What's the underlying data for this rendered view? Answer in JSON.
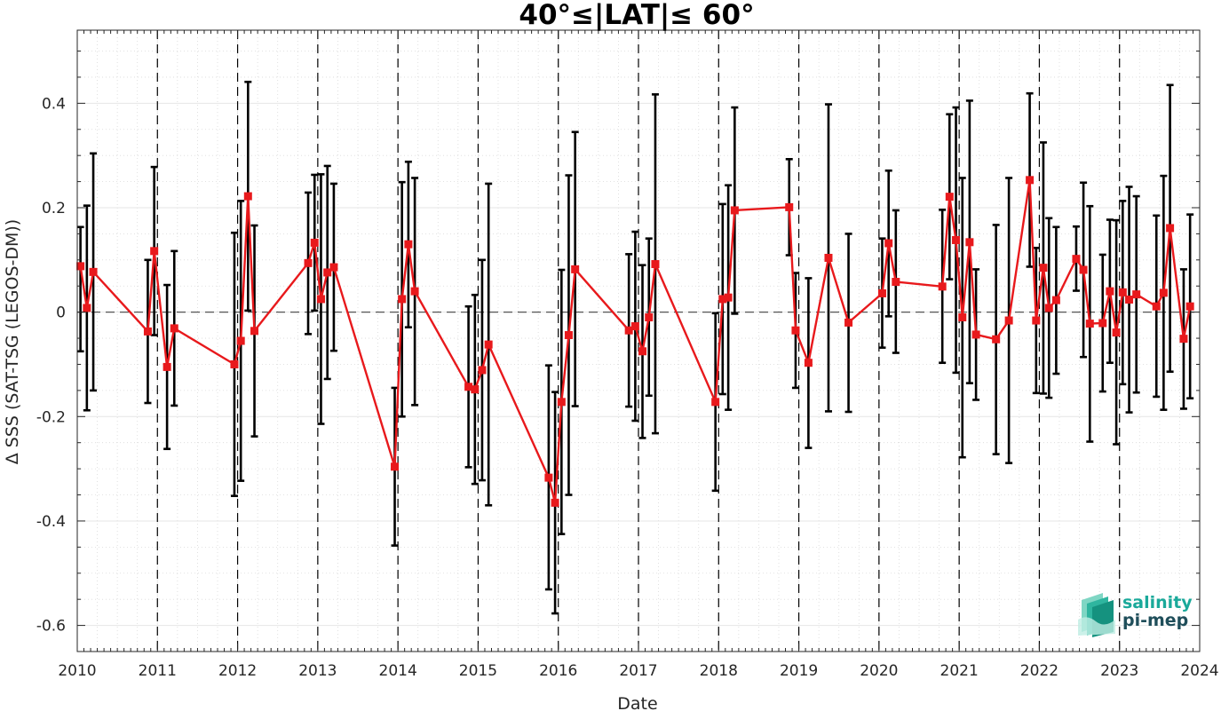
{
  "chart_data": {
    "type": "line",
    "title": "40°≤|LAT|≤ 60°",
    "xlabel": "Date",
    "ylabel": "Δ SSS (SAT-TSG (LEGOS-DM))",
    "xlim": [
      2010,
      2024
    ],
    "ylim": [
      -0.65,
      0.54
    ],
    "x_ticks": [
      "2010",
      "2011",
      "2012",
      "2013",
      "2014",
      "2015",
      "2016",
      "2017",
      "2018",
      "2019",
      "2020",
      "2021",
      "2022",
      "2023",
      "2024"
    ],
    "y_ticks": [
      "-0.6",
      "-0.4",
      "-0.2",
      "0",
      "0.2",
      "0.4"
    ],
    "y_tick_values": [
      -0.6,
      -0.4,
      -0.2,
      0,
      0.2,
      0.4
    ],
    "grid": true,
    "zero_line": 0,
    "year_dividers": [
      2011,
      2012,
      2013,
      2014,
      2015,
      2016,
      2017,
      2018,
      2019,
      2020,
      2021,
      2022,
      2023
    ],
    "series": [
      {
        "color": "#e8191c",
        "errorbar_color": "#000000",
        "marker": "square",
        "points": [
          [
            2010.04,
            0.088,
            -0.075,
            0.163
          ],
          [
            2010.12,
            0.008,
            -0.188,
            0.204
          ],
          [
            2010.2,
            0.077,
            -0.15,
            0.304
          ],
          [
            2010.88,
            -0.037,
            -0.174,
            0.1
          ],
          [
            2010.96,
            0.117,
            -0.044,
            0.278
          ],
          [
            2011.12,
            -0.105,
            -0.262,
            0.052
          ],
          [
            2011.21,
            -0.031,
            -0.179,
            0.117
          ],
          [
            2011.96,
            -0.1,
            -0.352,
            0.152
          ],
          [
            2012.04,
            -0.055,
            -0.323,
            0.213
          ],
          [
            2012.13,
            0.222,
            0.003,
            0.441
          ],
          [
            2012.21,
            -0.036,
            -0.238,
            0.166
          ],
          [
            2012.88,
            0.094,
            -0.042,
            0.229
          ],
          [
            2012.96,
            0.133,
            0.003,
            0.263
          ],
          [
            2013.04,
            0.025,
            -0.214,
            0.264
          ],
          [
            2013.12,
            0.076,
            -0.128,
            0.28
          ],
          [
            2013.2,
            0.086,
            -0.074,
            0.246
          ],
          [
            2013.96,
            -0.296,
            -0.447,
            -0.145
          ],
          [
            2014.05,
            0.025,
            -0.2,
            0.249
          ],
          [
            2014.13,
            0.13,
            -0.029,
            0.288
          ],
          [
            2014.21,
            0.04,
            -0.178,
            0.257
          ],
          [
            2014.88,
            -0.143,
            -0.297,
            0.011
          ],
          [
            2014.96,
            -0.148,
            -0.329,
            0.033
          ],
          [
            2015.05,
            -0.111,
            -0.322,
            0.1
          ],
          [
            2015.13,
            -0.062,
            -0.37,
            0.246
          ],
          [
            2015.88,
            -0.317,
            -0.531,
            -0.102
          ],
          [
            2015.96,
            -0.365,
            -0.577,
            -0.153
          ],
          [
            2016.04,
            -0.172,
            -0.425,
            0.081
          ],
          [
            2016.13,
            -0.044,
            -0.35,
            0.262
          ],
          [
            2016.21,
            0.082,
            -0.18,
            0.345
          ],
          [
            2016.88,
            -0.035,
            -0.181,
            0.111
          ],
          [
            2016.96,
            -0.027,
            -0.208,
            0.154
          ],
          [
            2017.05,
            -0.075,
            -0.241,
            0.09
          ],
          [
            2017.13,
            -0.01,
            -0.16,
            0.141
          ],
          [
            2017.21,
            0.092,
            -0.232,
            0.417
          ],
          [
            2017.96,
            -0.172,
            -0.342,
            -0.002
          ],
          [
            2018.05,
            0.025,
            -0.157,
            0.207
          ],
          [
            2018.12,
            0.028,
            -0.187,
            0.243
          ],
          [
            2018.2,
            0.195,
            -0.003,
            0.392
          ],
          [
            2018.88,
            0.201,
            0.109,
            0.293
          ],
          [
            2018.96,
            -0.035,
            -0.145,
            0.075
          ],
          [
            2019.12,
            -0.097,
            -0.26,
            0.065
          ],
          [
            2019.37,
            0.104,
            -0.19,
            0.398
          ],
          [
            2019.62,
            -0.02,
            -0.191,
            0.15
          ],
          [
            2020.04,
            0.036,
            -0.068,
            0.141
          ],
          [
            2020.12,
            0.132,
            -0.008,
            0.271
          ],
          [
            2020.21,
            0.058,
            -0.078,
            0.195
          ],
          [
            2020.79,
            0.049,
            -0.097,
            0.196
          ],
          [
            2020.88,
            0.221,
            0.063,
            0.379
          ],
          [
            2020.96,
            0.138,
            -0.116,
            0.392
          ],
          [
            2021.04,
            -0.01,
            -0.278,
            0.257
          ],
          [
            2021.13,
            0.134,
            -0.136,
            0.405
          ],
          [
            2021.21,
            -0.043,
            -0.168,
            0.082
          ],
          [
            2021.46,
            -0.052,
            -0.272,
            0.167
          ],
          [
            2021.62,
            -0.016,
            -0.289,
            0.257
          ],
          [
            2021.88,
            0.253,
            0.087,
            0.419
          ],
          [
            2021.96,
            -0.016,
            -0.155,
            0.123
          ],
          [
            2022.05,
            0.085,
            -0.156,
            0.325
          ],
          [
            2022.12,
            0.008,
            -0.164,
            0.18
          ],
          [
            2022.21,
            0.023,
            -0.118,
            0.163
          ],
          [
            2022.46,
            0.102,
            0.041,
            0.164
          ],
          [
            2022.55,
            0.081,
            -0.086,
            0.248
          ],
          [
            2022.63,
            -0.022,
            -0.248,
            0.203
          ],
          [
            2022.79,
            -0.021,
            -0.152,
            0.11
          ],
          [
            2022.88,
            0.04,
            -0.097,
            0.177
          ],
          [
            2022.96,
            -0.039,
            -0.253,
            0.176
          ],
          [
            2023.04,
            0.038,
            -0.138,
            0.213
          ],
          [
            2023.12,
            0.024,
            -0.192,
            0.24
          ],
          [
            2023.21,
            0.034,
            -0.154,
            0.222
          ],
          [
            2023.46,
            0.011,
            -0.162,
            0.185
          ],
          [
            2023.55,
            0.037,
            -0.187,
            0.261
          ],
          [
            2023.63,
            0.161,
            -0.114,
            0.435
          ],
          [
            2023.8,
            -0.051,
            -0.185,
            0.082
          ],
          [
            2023.88,
            0.011,
            -0.165,
            0.187
          ]
        ]
      }
    ]
  },
  "logo": {
    "line1": "salinity",
    "line2": "pi-mep",
    "line1_color": "#1aa99a",
    "line2_color": "#1f4e5a"
  }
}
